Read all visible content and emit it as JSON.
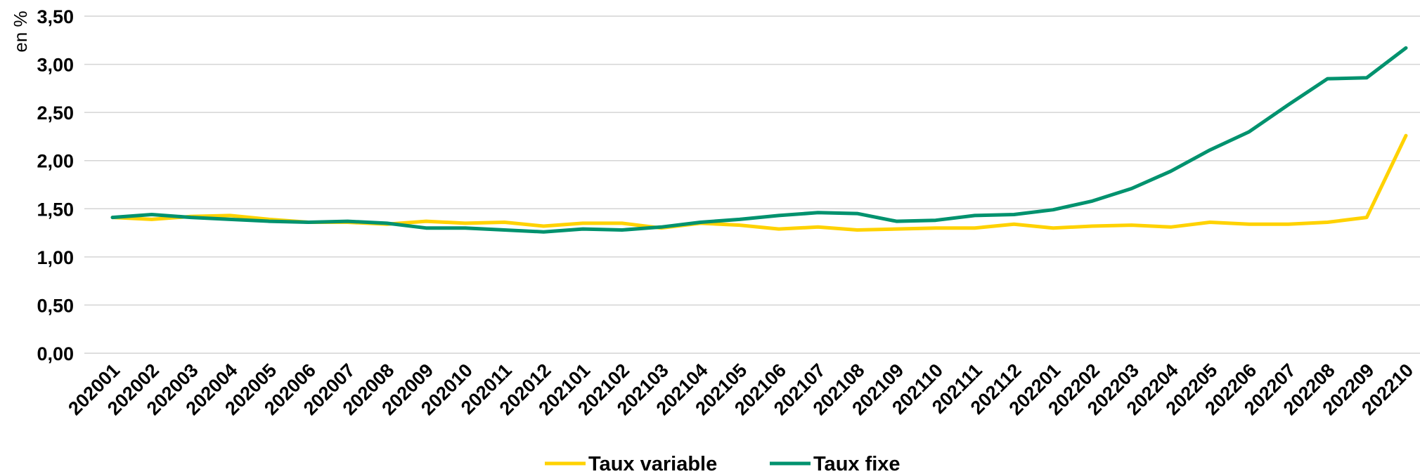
{
  "chart_data": {
    "type": "line",
    "title": "",
    "xlabel": "",
    "ylabel": "en %",
    "ylim": [
      0,
      3.5
    ],
    "y_ticks": [
      "0,00",
      "0,50",
      "1,00",
      "1,50",
      "2,00",
      "2,50",
      "3,00",
      "3,50"
    ],
    "grid": true,
    "legend_position": "bottom",
    "categories": [
      "202001",
      "202002",
      "202003",
      "202004",
      "202005",
      "202006",
      "202007",
      "202008",
      "202009",
      "202010",
      "202011",
      "202012",
      "202101",
      "202102",
      "202103",
      "202104",
      "202105",
      "202106",
      "202107",
      "202108",
      "202109",
      "202110",
      "202111",
      "202112",
      "202201",
      "202202",
      "202203",
      "202204",
      "202205",
      "202206",
      "202207",
      "202208",
      "202209",
      "202210"
    ],
    "series": [
      {
        "name": "Taux variable",
        "color": "#FFD200",
        "values": [
          1.41,
          1.39,
          1.42,
          1.43,
          1.39,
          1.36,
          1.36,
          1.34,
          1.37,
          1.35,
          1.36,
          1.32,
          1.35,
          1.35,
          1.3,
          1.35,
          1.33,
          1.29,
          1.31,
          1.28,
          1.29,
          1.3,
          1.3,
          1.34,
          1.3,
          1.32,
          1.33,
          1.31,
          1.36,
          1.34,
          1.34,
          1.36,
          1.41,
          2.26
        ]
      },
      {
        "name": "Taux fixe",
        "color": "#00926E",
        "values": [
          1.41,
          1.44,
          1.41,
          1.39,
          1.37,
          1.36,
          1.37,
          1.35,
          1.3,
          1.3,
          1.28,
          1.26,
          1.29,
          1.28,
          1.31,
          1.36,
          1.39,
          1.43,
          1.46,
          1.45,
          1.37,
          1.38,
          1.43,
          1.44,
          1.49,
          1.58,
          1.71,
          1.89,
          2.11,
          2.3,
          2.58,
          2.85,
          2.86,
          3.17
        ]
      }
    ]
  }
}
